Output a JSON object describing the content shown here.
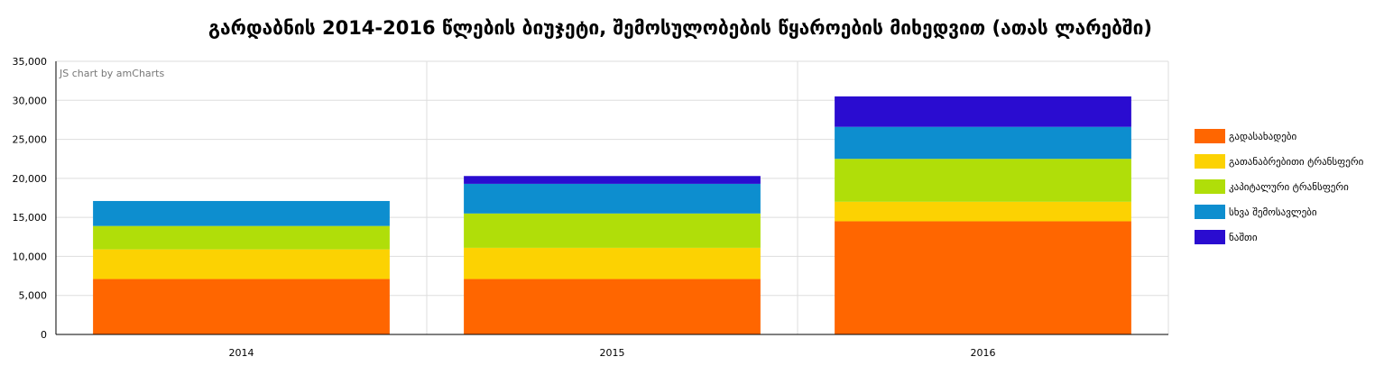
{
  "chart_data": {
    "type": "bar",
    "stacked": true,
    "title": "გარდაბნის 2014-2016 წლების ბიუჯეტი, შემოსულობების წყაროების მიხედვით (ათას ლარებში)",
    "credit": "JS chart by amCharts",
    "categories": [
      "2014",
      "2015",
      "2016"
    ],
    "series": [
      {
        "name": "გადასახადები",
        "color": "#FF6600",
        "values": [
          7100,
          7100,
          14500
        ]
      },
      {
        "name": "გათანაბრებითი ტრანსფერი",
        "color": "#FCD202",
        "values": [
          3800,
          4000,
          2500
        ]
      },
      {
        "name": "კაპიტალური ტრანსფერი",
        "color": "#B0DE09",
        "values": [
          3000,
          4400,
          5500
        ]
      },
      {
        "name": "სხვა შემოსავლები",
        "color": "#0D8ECF",
        "values": [
          3200,
          3800,
          4100
        ]
      },
      {
        "name": "ნაშთი",
        "color": "#2A0CD0",
        "values": [
          0,
          1000,
          3900
        ]
      }
    ],
    "ylim": [
      0,
      35000
    ],
    "yticks": [
      "0",
      "5,000",
      "10,000",
      "15,000",
      "20,000",
      "25,000",
      "30,000",
      "35,000"
    ],
    "ytick_values": [
      0,
      5000,
      10000,
      15000,
      20000,
      25000,
      30000,
      35000
    ],
    "grid": true,
    "legend_position": "right"
  }
}
